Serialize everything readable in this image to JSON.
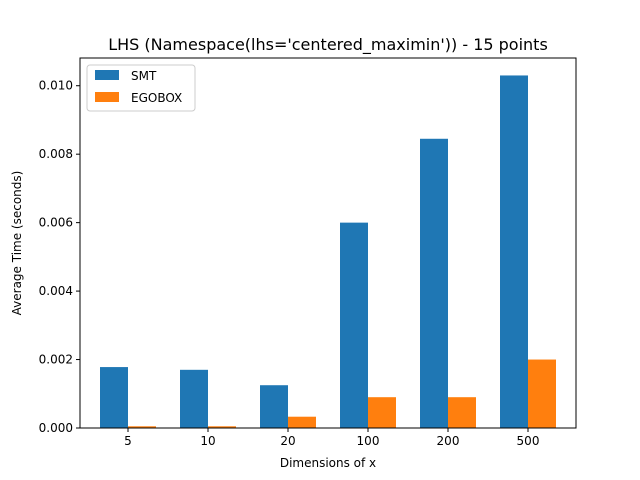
{
  "chart_data": {
    "type": "bar",
    "title": "LHS (Namespace(lhs='centered_maximin')) - 15 points",
    "xlabel": "Dimensions of x",
    "ylabel": "Average Time (seconds)",
    "categories": [
      "5",
      "10",
      "20",
      "100",
      "200",
      "500"
    ],
    "series": [
      {
        "name": "SMT",
        "color": "#1f77b4",
        "values": [
          0.00178,
          0.0017,
          0.00125,
          0.006,
          0.00845,
          0.0103
        ]
      },
      {
        "name": "EGOBOX",
        "color": "#ff7f0e",
        "values": [
          5e-05,
          5e-05,
          0.00033,
          0.0009,
          0.0009,
          0.002
        ]
      }
    ],
    "ylim": [
      0,
      0.01081
    ],
    "yticks": [
      "0.000",
      "0.002",
      "0.004",
      "0.006",
      "0.008",
      "0.010"
    ],
    "grid": false,
    "legend_position": "top-left"
  }
}
